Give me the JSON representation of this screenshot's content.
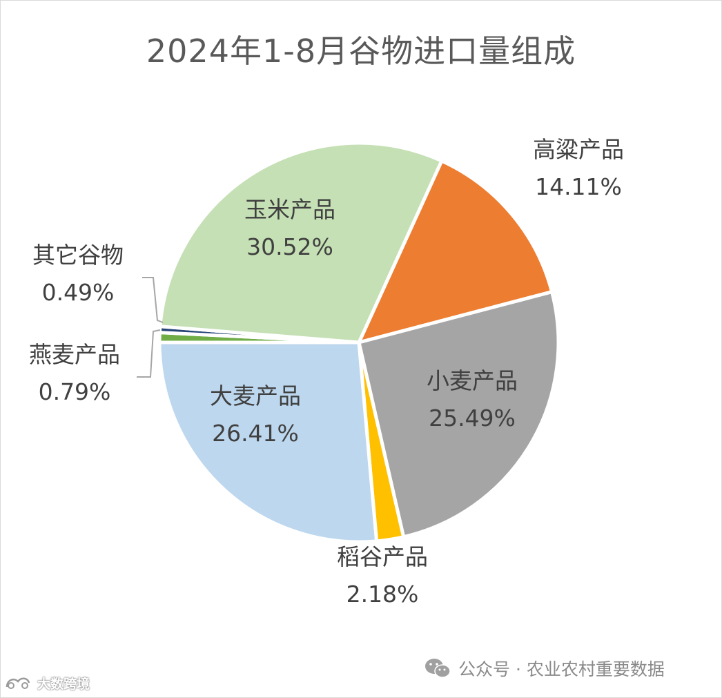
{
  "chart_data": {
    "type": "pie",
    "title": "2024年1-8月谷物进口量组成",
    "unit": "%",
    "slices": [
      {
        "name": "高粱产品",
        "value": 14.11,
        "display": "14.11%",
        "color": "#ED7D31"
      },
      {
        "name": "小麦产品",
        "value": 25.49,
        "display": "25.49%",
        "color": "#A5A5A5"
      },
      {
        "name": "稻谷产品",
        "value": 2.18,
        "display": "2.18%",
        "color": "#FFC000"
      },
      {
        "name": "大麦产品",
        "value": 26.41,
        "display": "26.41%",
        "color": "#BDD7EE"
      },
      {
        "name": "燕麦产品",
        "value": 0.79,
        "display": "0.79%",
        "color": "#70AD47"
      },
      {
        "name": "其它谷物",
        "value": 0.49,
        "display": "0.49%",
        "color": "#264478"
      },
      {
        "name": "玉米产品",
        "value": 30.52,
        "display": "30.52%",
        "color": "#C5E0B4"
      }
    ],
    "legend": "none",
    "labels": "category name and percentage"
  },
  "watermark": {
    "wechat_text": "公众号 · 农业农村重要数据",
    "corner_text": "大数跨境"
  }
}
